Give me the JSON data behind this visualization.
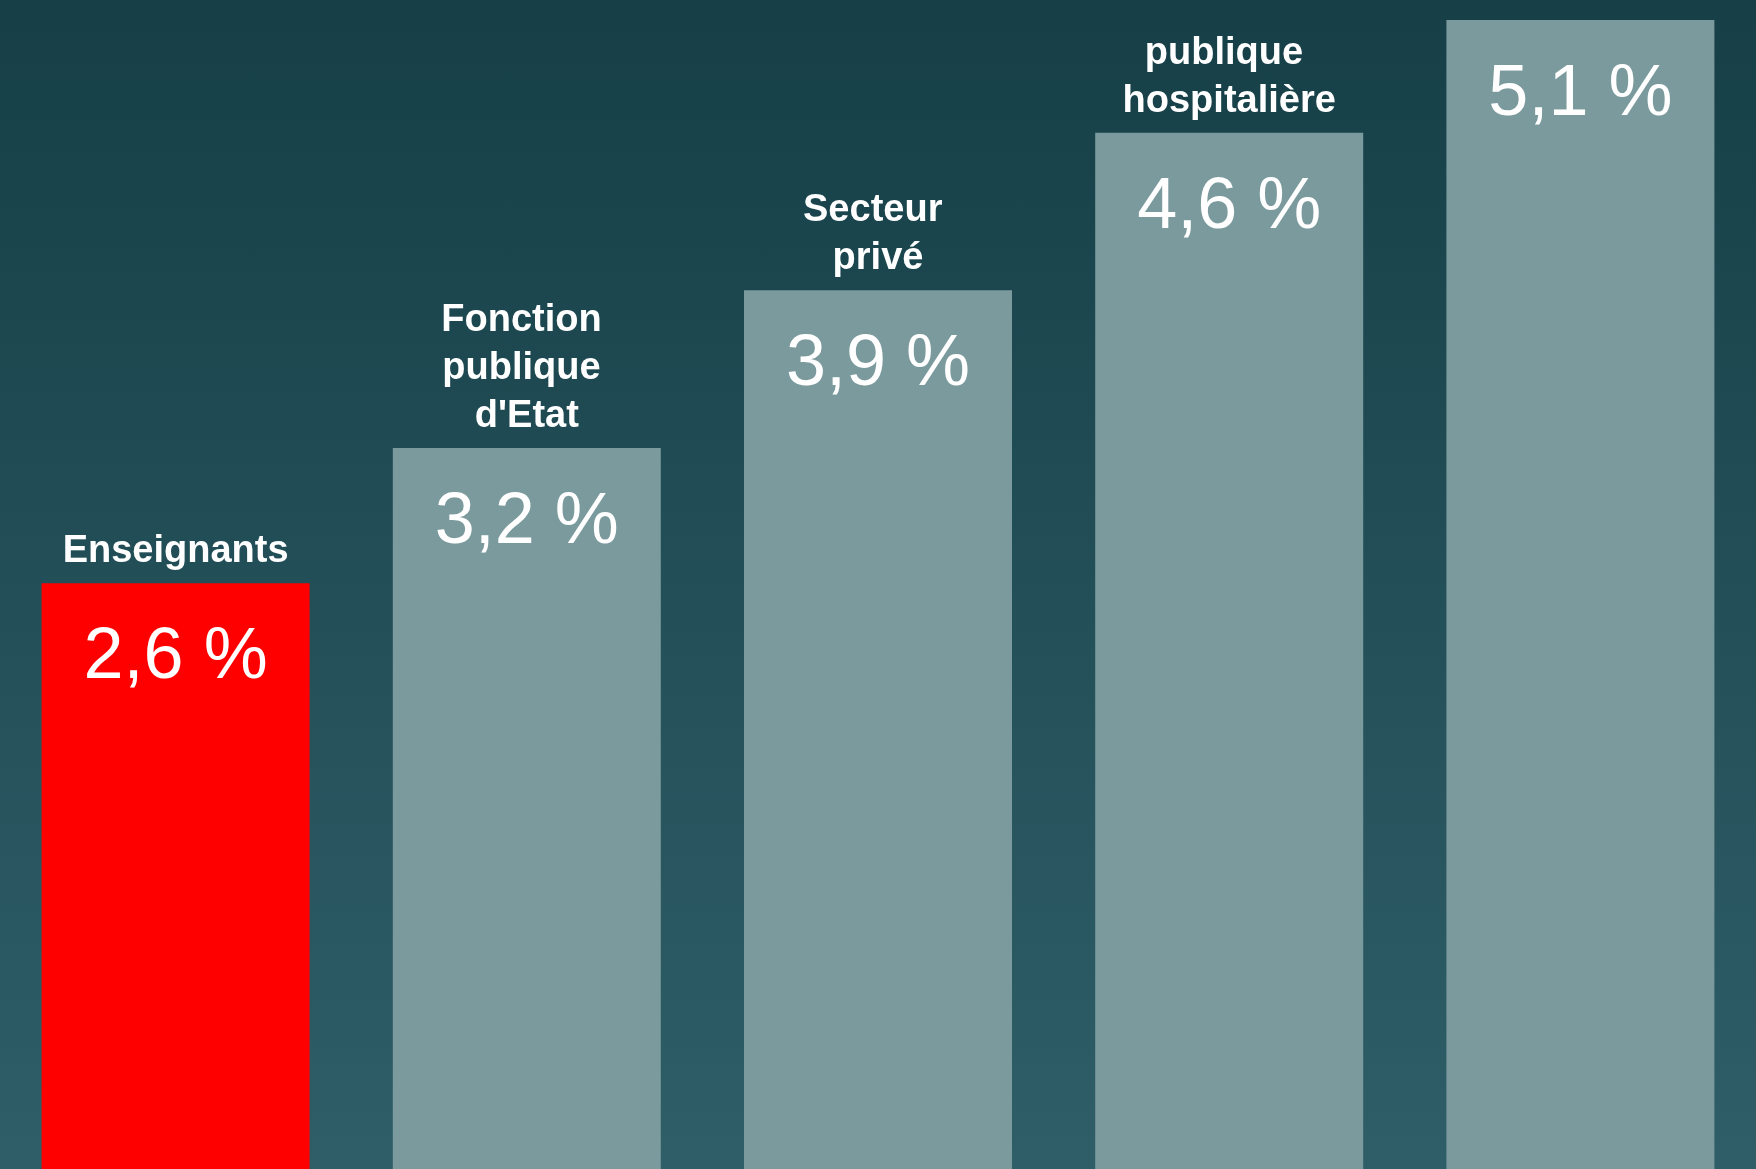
{
  "chart_data": {
    "type": "bar",
    "categories": [
      "Enseignants",
      "Fonction publique d'Etat",
      "Secteur privé",
      "publique hospitalière",
      null
    ],
    "values": [
      2.6,
      3.2,
      3.9,
      4.6,
      5.1
    ],
    "value_labels": [
      "2,6 %",
      "3,2 %",
      "3,9 %",
      "4,6 %",
      "5,1 %"
    ],
    "colors": [
      "#ff0000",
      "#7b9a9d",
      "#7b9a9d",
      "#7b9a9d",
      "#7b9a9d"
    ]
  }
}
